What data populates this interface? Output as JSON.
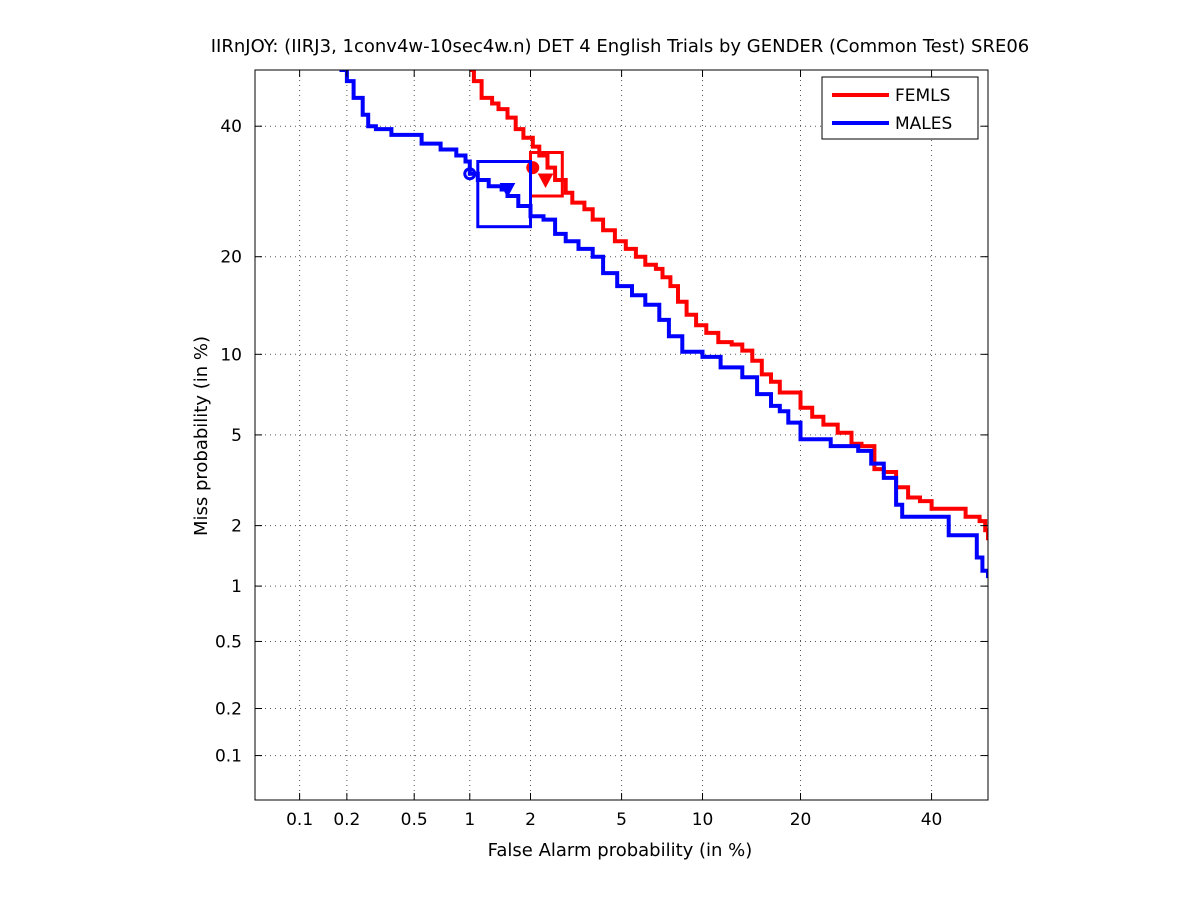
{
  "chart_data": {
    "type": "line",
    "title": "IIRnJOY: (IIRJ3, 1conv4w-10sec4w.n) DET 4 English Trials by GENDER (Common Test) SRE06",
    "xlabel": "False Alarm probability (in %)",
    "ylabel": "Miss probability (in %)",
    "x_scale": "probit",
    "y_scale": "probit",
    "xlim": [
      0.05,
      50
    ],
    "ylim": [
      0.05,
      50
    ],
    "x_ticks": [
      0.1,
      0.2,
      0.5,
      1,
      2,
      5,
      10,
      20,
      40
    ],
    "x_tick_labels": [
      "0.1",
      "0.2",
      "0.5",
      "1",
      "2",
      "5",
      "10",
      "20",
      "40"
    ],
    "y_ticks": [
      0.1,
      0.2,
      0.5,
      1,
      2,
      5,
      10,
      20,
      40
    ],
    "y_tick_labels": [
      "0.1",
      "0.2",
      "0.5",
      "1",
      "2",
      "5",
      "10",
      "20",
      "40"
    ],
    "grid": true,
    "legend_position": "top-right",
    "series": [
      {
        "name": "FEMLS",
        "color": "#ff0000",
        "points": [
          [
            1.0,
            50
          ],
          [
            1.05,
            48
          ],
          [
            1.15,
            45
          ],
          [
            1.3,
            44
          ],
          [
            1.4,
            43
          ],
          [
            1.55,
            41.5
          ],
          [
            1.7,
            39.5
          ],
          [
            1.85,
            38
          ],
          [
            2.05,
            36.5
          ],
          [
            2.2,
            35
          ],
          [
            2.4,
            33
          ],
          [
            2.6,
            31
          ],
          [
            2.9,
            29
          ],
          [
            3.1,
            27.5
          ],
          [
            3.5,
            26.5
          ],
          [
            3.8,
            25
          ],
          [
            4.2,
            23.5
          ],
          [
            4.7,
            22
          ],
          [
            5.2,
            21
          ],
          [
            5.7,
            20
          ],
          [
            6.2,
            19
          ],
          [
            6.8,
            18.5
          ],
          [
            7.2,
            17.5
          ],
          [
            7.7,
            16.5
          ],
          [
            8.2,
            14.8
          ],
          [
            8.8,
            13.5
          ],
          [
            9.5,
            12.5
          ],
          [
            10.3,
            11.8
          ],
          [
            11.3,
            11
          ],
          [
            12.5,
            10.8
          ],
          [
            13.5,
            10.3
          ],
          [
            14.5,
            9.5
          ],
          [
            15.5,
            8.5
          ],
          [
            16.5,
            8
          ],
          [
            17.5,
            7.3
          ],
          [
            19.0,
            7.3
          ],
          [
            20.0,
            6.4
          ],
          [
            21.5,
            5.9
          ],
          [
            23.0,
            5.5
          ],
          [
            25.0,
            5.1
          ],
          [
            27.0,
            4.6
          ],
          [
            28.5,
            4.5
          ],
          [
            30.5,
            3.6
          ],
          [
            32.0,
            3.5
          ],
          [
            34.0,
            3.0
          ],
          [
            36.0,
            2.7
          ],
          [
            38.0,
            2.6
          ],
          [
            40.0,
            2.4
          ],
          [
            44.0,
            2.4
          ],
          [
            46.0,
            2.2
          ],
          [
            48.5,
            2.1
          ],
          [
            49.5,
            1.9
          ],
          [
            50.0,
            1.7
          ]
        ],
        "actual_dcf_point": [
          2.05,
          33
        ],
        "min_dcf_point": [
          2.35,
          31
        ],
        "confidence_box": {
          "x": [
            2.0,
            2.8
          ],
          "y": [
            28.5,
            35.5
          ]
        }
      },
      {
        "name": "MALES",
        "color": "#0000ff",
        "points": [
          [
            0.18,
            50
          ],
          [
            0.2,
            48
          ],
          [
            0.22,
            45
          ],
          [
            0.25,
            42
          ],
          [
            0.27,
            40
          ],
          [
            0.3,
            39.5
          ],
          [
            0.37,
            38.5
          ],
          [
            0.45,
            38.5
          ],
          [
            0.55,
            37
          ],
          [
            0.7,
            36
          ],
          [
            0.85,
            35
          ],
          [
            0.95,
            34
          ],
          [
            1.0,
            32
          ],
          [
            1.1,
            31
          ],
          [
            1.25,
            30
          ],
          [
            1.45,
            29.5
          ],
          [
            1.55,
            28.5
          ],
          [
            1.75,
            27
          ],
          [
            2.0,
            25.5
          ],
          [
            2.3,
            25
          ],
          [
            2.6,
            23
          ],
          [
            2.9,
            22
          ],
          [
            3.3,
            21
          ],
          [
            3.8,
            20
          ],
          [
            4.2,
            18
          ],
          [
            4.8,
            16.5
          ],
          [
            5.5,
            15.5
          ],
          [
            6.2,
            14.5
          ],
          [
            7.0,
            13
          ],
          [
            7.6,
            11.5
          ],
          [
            8.5,
            10.2
          ],
          [
            10.0,
            9.8
          ],
          [
            11.5,
            9
          ],
          [
            13.5,
            8.3
          ],
          [
            15.0,
            7.2
          ],
          [
            16.5,
            6.5
          ],
          [
            17.5,
            6.2
          ],
          [
            18.5,
            5.6
          ],
          [
            20.0,
            4.8
          ],
          [
            24.0,
            4.5
          ],
          [
            28.0,
            4.3
          ],
          [
            30.0,
            3.8
          ],
          [
            32.0,
            3.3
          ],
          [
            34.0,
            2.5
          ],
          [
            35.0,
            2.2
          ],
          [
            40.0,
            2.2
          ],
          [
            43.0,
            1.8
          ],
          [
            47.0,
            1.8
          ],
          [
            48.0,
            1.4
          ],
          [
            49.0,
            1.2
          ],
          [
            50.0,
            1.1
          ]
        ],
        "actual_dcf_point": [
          1.0,
          32
        ],
        "min_dcf_point": [
          1.55,
          29.5
        ],
        "confidence_box": {
          "x": [
            1.1,
            2.0
          ],
          "y": [
            24,
            34
          ]
        }
      }
    ]
  }
}
